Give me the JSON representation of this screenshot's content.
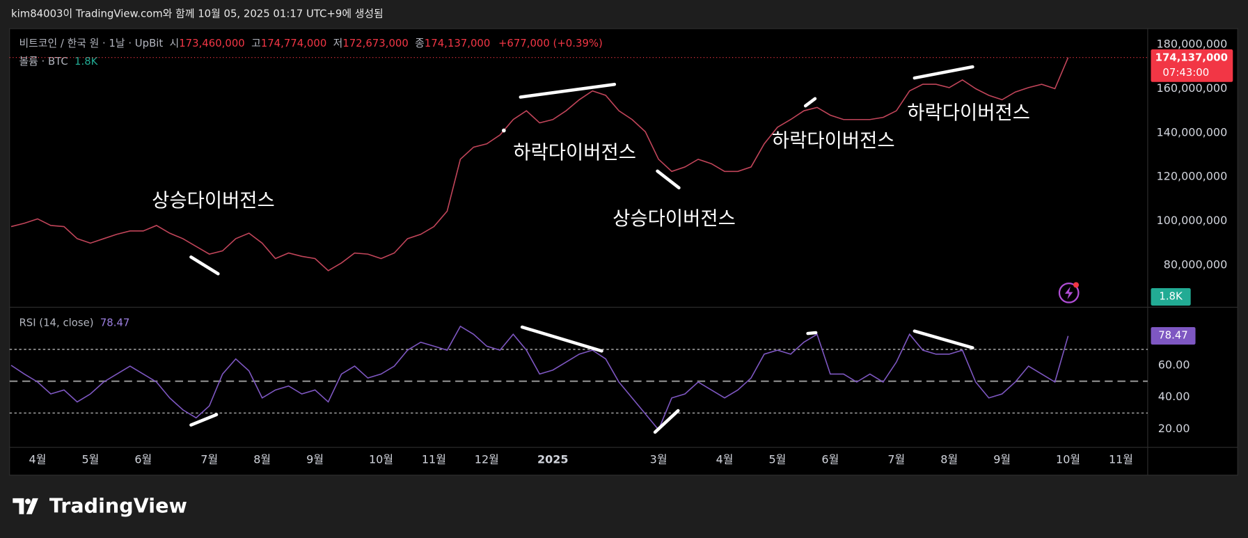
{
  "header": "kim84003이 TradingView.com와 함께 10월 05, 2025 01:17 UTC+9에 생성됨",
  "legend": {
    "symbol": "비트코인 / 한국 원 · 1날 · UpBit",
    "ohlc": [
      {
        "label": "시",
        "value": "173,460,000"
      },
      {
        "label": "고",
        "value": "174,774,000"
      },
      {
        "label": "저",
        "value": "172,673,000"
      },
      {
        "label": "종",
        "value": "174,137,000"
      }
    ],
    "change": "+677,000 (+0.39%)",
    "volume_label": "볼륨 · BTC",
    "volume_value": "1.8K"
  },
  "price_tag": {
    "price": "174,137,000",
    "countdown": "07:43:00"
  },
  "rsi_legend": {
    "label": "RSI (14, close)",
    "value": "78.47"
  },
  "logo": "TradingView",
  "chart_data": [
    {
      "type": "line",
      "color": "#c2455a",
      "categories": [
        null,
        null,
        "4월",
        null,
        null,
        null,
        "5월",
        null,
        null,
        null,
        "6월",
        null,
        null,
        null,
        null,
        "7월",
        null,
        null,
        null,
        "8월",
        null,
        null,
        null,
        "9월",
        null,
        null,
        null,
        null,
        "10월",
        null,
        null,
        null,
        "11월",
        null,
        null,
        null,
        "12월",
        null,
        null,
        null,
        null,
        "2025",
        null,
        null,
        null,
        null,
        null,
        null,
        null,
        "3월",
        null,
        null,
        null,
        null,
        "4월",
        null,
        null,
        null,
        "5월",
        null,
        null,
        null,
        "6월",
        null,
        null,
        null,
        null,
        "7월",
        null,
        null,
        null,
        "8월",
        null,
        null,
        null,
        "9월",
        null,
        null,
        null,
        null,
        "10월",
        null,
        null,
        null,
        "11월"
      ],
      "values": [
        97500000,
        99000000,
        101000000,
        98000000,
        97500000,
        92000000,
        90000000,
        92000000,
        94000000,
        95500000,
        95500000,
        98000000,
        94500000,
        92000000,
        88500000,
        85000000,
        86500000,
        92000000,
        94500000,
        90000000,
        83000000,
        85500000,
        84000000,
        83000000,
        77500000,
        81000000,
        85500000,
        85000000,
        83000000,
        85500000,
        92000000,
        94000000,
        97500000,
        104500000,
        128000000,
        133500000,
        135000000,
        139000000,
        146000000,
        150000000,
        144500000,
        146000000,
        150000000,
        155000000,
        159000000,
        157000000,
        150000000,
        146000000,
        140500000,
        128000000,
        122500000,
        124500000,
        128000000,
        126000000,
        122500000,
        122500000,
        124500000,
        135000000,
        142500000,
        146000000,
        150000000,
        151500000,
        148000000,
        146000000,
        146000000,
        146000000,
        147000000,
        150000000,
        159000000,
        162000000,
        162000000,
        160500000,
        164000000,
        160000000,
        157000000,
        155000000,
        158500000,
        160500000,
        162000000,
        160000000,
        174137000,
        null,
        null,
        null,
        null
      ],
      "ylim": [
        61300000,
        186500000
      ],
      "yticks": [
        {
          "value": 80000000,
          "label": "80,000,000"
        },
        {
          "value": 100000000,
          "label": "100,000,000"
        },
        {
          "value": 120000000,
          "label": "120,000,000"
        },
        {
          "value": 140000000,
          "label": "140,000,000"
        },
        {
          "value": 160000000,
          "label": "160,000,000"
        },
        {
          "value": 180000000,
          "label": "180,000,000"
        }
      ],
      "annotations": [
        "상승다이버전스",
        "하락다이버전스",
        "상승다이버전스",
        "하락다이버전스",
        "하락다이버전스"
      ],
      "grid": false
    },
    {
      "type": "line",
      "color": "#7e57c2",
      "values": [
        60,
        54.5,
        49.5,
        42,
        44.5,
        37,
        42,
        49.5,
        54.5,
        59.5,
        54.5,
        49.5,
        39.5,
        32,
        27,
        34.5,
        54.5,
        64,
        56.5,
        39.5,
        44.5,
        47,
        42,
        44.5,
        37,
        54.5,
        59.5,
        52,
        54.5,
        59.5,
        69.5,
        74.5,
        72,
        69.5,
        84.5,
        79.5,
        72,
        69.5,
        79.5,
        69.5,
        54.5,
        57,
        62,
        67,
        69.5,
        64,
        49.5,
        39.5,
        29.5,
        19.5,
        39.5,
        42,
        49.5,
        44.5,
        39.5,
        44.5,
        52,
        67,
        69.5,
        67,
        74.5,
        79.5,
        54.5,
        54.5,
        49.5,
        54.5,
        49.5,
        62,
        79.5,
        69.5,
        67,
        67,
        69.5,
        49.5,
        39.5,
        42,
        49.5,
        59.5,
        54.5,
        49.5,
        78.47,
        null,
        null,
        null,
        null
      ],
      "ylim": [
        9.5,
        95.5
      ],
      "yticks": [
        {
          "value": 20,
          "label": "20.00"
        },
        {
          "value": 40,
          "label": "40.00"
        },
        {
          "value": 60,
          "label": "60.00"
        }
      ],
      "levels": [
        30,
        50,
        70
      ],
      "grid": false
    }
  ]
}
